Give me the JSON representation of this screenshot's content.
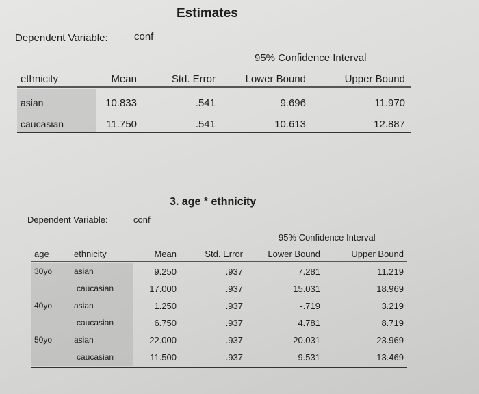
{
  "table1": {
    "title": "Estimates",
    "dependent_label": "Dependent Variable:",
    "dependent_value": "conf",
    "ci_header": "95% Confidence Interval",
    "headers": [
      "ethnicity",
      "Mean",
      "Std. Error",
      "Lower Bound",
      "Upper Bound"
    ],
    "rows": [
      [
        "asian",
        "10.833",
        ".541",
        "9.696",
        "11.970"
      ],
      [
        "caucasian",
        "11.750",
        ".541",
        "10.613",
        "12.887"
      ]
    ]
  },
  "table2": {
    "title": "3. age * ethnicity",
    "dependent_label": "Dependent Variable:",
    "dependent_value": "conf",
    "ci_header": "95% Confidence Interval",
    "headers": [
      "age",
      "ethnicity",
      "Mean",
      "Std. Error",
      "Lower Bound",
      "Upper Bound"
    ],
    "groups": [
      {
        "age": "30yo",
        "rows": [
          [
            "asian",
            "9.250",
            ".937",
            "7.281",
            "11.219"
          ],
          [
            "caucasian",
            "17.000",
            ".937",
            "15.031",
            "18.969"
          ]
        ]
      },
      {
        "age": "40yo",
        "rows": [
          [
            "asian",
            "1.250",
            ".937",
            "-.719",
            "3.219"
          ],
          [
            "caucasian",
            "6.750",
            ".937",
            "4.781",
            "8.719"
          ]
        ]
      },
      {
        "age": "50yo",
        "rows": [
          [
            "asian",
            "22.000",
            ".937",
            "20.031",
            "23.969"
          ],
          [
            "caucasian",
            "11.500",
            ".937",
            "9.531",
            "13.469"
          ]
        ]
      }
    ]
  }
}
